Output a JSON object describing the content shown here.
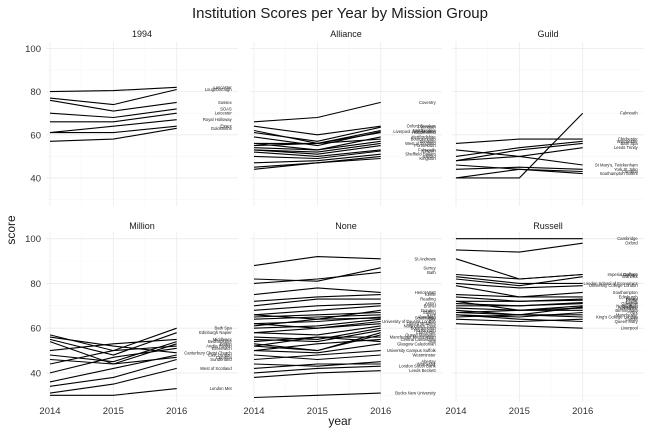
{
  "chart_data": {
    "type": "line",
    "title": "Institution Scores per Year by Mission Group",
    "xlabel": "year",
    "ylabel": "score",
    "x": [
      2014,
      2015,
      2016
    ],
    "x_tick_labels": [
      "2014",
      "2015",
      "2016"
    ],
    "ylim": [
      27,
      103
    ],
    "y_ticks": [
      40,
      60,
      80,
      100
    ],
    "y_tick_labels": [
      "40",
      "60",
      "80",
      "100"
    ],
    "grid": true,
    "facets": [
      {
        "name": "1994",
        "series": [
          {
            "name": "Lancaster",
            "values": [
              80,
              80.5,
              82
            ]
          },
          {
            "name": "Loughborough",
            "values": [
              77,
              74,
              81
            ]
          },
          {
            "name": "Sussex",
            "values": [
              76,
              71,
              75
            ]
          },
          {
            "name": "SOAS",
            "values": [
              70,
              68,
              72
            ]
          },
          {
            "name": "Leicester",
            "values": [
              66,
              66,
              70
            ]
          },
          {
            "name": "Royal Holloway",
            "values": [
              61,
              64,
              67
            ]
          },
          {
            "name": "Essex",
            "values": [
              61,
              61,
              64
            ]
          },
          {
            "name": "Goldsmiths",
            "values": [
              57,
              58,
              63
            ]
          }
        ]
      },
      {
        "name": "Alliance",
        "series": [
          {
            "name": "Coventry",
            "values": [
              66,
              68,
              75
            ]
          },
          {
            "name": "Oxford Brookes",
            "values": [
              64,
              60,
              64
            ]
          },
          {
            "name": "Plymouth",
            "values": [
              61,
              57,
              63.5
            ]
          },
          {
            "name": "Northumbria",
            "values": [
              62,
              56,
              62
            ]
          },
          {
            "name": "Liverpool John Moores",
            "values": [
              59,
              55,
              61.5
            ]
          },
          {
            "name": "Huddersfield",
            "values": [
              56,
              56,
              61
            ]
          },
          {
            "name": "Hertfordshire",
            "values": [
              56,
              53,
              59
            ]
          },
          {
            "name": "Bournemouth",
            "values": [
              55,
              56,
              58
            ]
          },
          {
            "name": "Teesside",
            "values": [
              54,
              53,
              57
            ]
          },
          {
            "name": "West of England",
            "values": [
              53,
              52,
              56
            ]
          },
          {
            "name": "Portsmouth",
            "values": [
              53,
              51,
              55
            ]
          },
          {
            "name": "Falmouth",
            "values": [
              52,
              50,
              53
            ]
          },
          {
            "name": "Lincoln",
            "values": [
              50,
              49,
              52.5
            ]
          },
          {
            "name": "Sheffield Hallam",
            "values": [
              47,
              48,
              51
            ]
          },
          {
            "name": "Salford",
            "values": [
              45,
              47,
              50
            ]
          },
          {
            "name": "Kingston",
            "values": [
              44,
              47,
              49
            ]
          }
        ]
      },
      {
        "name": "Guild",
        "series": [
          {
            "name": "Falmouth",
            "values": [
              40,
              40,
              70
            ]
          },
          {
            "name": "Chichester",
            "values": [
              56,
              58,
              58
            ]
          },
          {
            "name": "Winchester",
            "values": [
              50,
              54,
              57
            ]
          },
          {
            "name": "Bath Spa",
            "values": [
              48,
              53,
              56
            ]
          },
          {
            "name": "Leeds Trinity",
            "values": [
              53,
              50,
              54
            ]
          },
          {
            "name": "St Mary's, Twickenham",
            "values": [
              48,
              50,
              46
            ]
          },
          {
            "name": "York St John",
            "values": [
              44,
              45,
              44
            ]
          },
          {
            "name": "Cumbria",
            "values": [
              46,
              44,
              43
            ]
          },
          {
            "name": "Southampton Solent",
            "values": [
              40,
              44,
              42
            ]
          }
        ]
      },
      {
        "name": "Million",
        "series": [
          {
            "name": "Bath Spa",
            "values": [
              57,
              50,
              60
            ]
          },
          {
            "name": "Edinburgh Napier",
            "values": [
              55,
              48,
              58
            ]
          },
          {
            "name": "Middlesex",
            "values": [
              50,
              53,
              55
            ]
          },
          {
            "name": "Bedfordshire",
            "values": [
              48,
              45,
              54
            ]
          },
          {
            "name": "Bolton",
            "values": [
              46,
              44,
              53
            ]
          },
          {
            "name": "Anglia Ruskin",
            "values": [
              44,
              50,
              52
            ]
          },
          {
            "name": "Greenwich",
            "values": [
              40,
              47,
              51
            ]
          },
          {
            "name": "Canterbury Christ Church",
            "values": [
              56,
              52,
              49
            ]
          },
          {
            "name": "East London",
            "values": [
              36,
              42,
              48
            ]
          },
          {
            "name": "Cumbria",
            "values": [
              54,
              44,
              47
            ]
          },
          {
            "name": "Sunderland",
            "values": [
              34,
              38,
              46
            ]
          },
          {
            "name": "West of Scotland",
            "values": [
              31,
              35,
              42
            ]
          },
          {
            "name": "London Met",
            "values": [
              30,
              30,
              33
            ]
          }
        ]
      },
      {
        "name": "None",
        "series": [
          {
            "name": "St Andrews",
            "values": [
              88,
              92,
              91
            ]
          },
          {
            "name": "Surrey",
            "values": [
              82,
              81,
              87
            ]
          },
          {
            "name": "Bath",
            "values": [
              80,
              82,
              85
            ]
          },
          {
            "name": "Heriot-Watt",
            "values": [
              75,
              78,
              76
            ]
          },
          {
            "name": "Keele",
            "values": [
              72,
              74,
              75
            ]
          },
          {
            "name": "Reading",
            "values": [
              70,
              73,
              73
            ]
          },
          {
            "name": "Aston",
            "values": [
              68,
              70,
              71
            ]
          },
          {
            "name": "Brunel",
            "values": [
              66,
              68,
              70
            ]
          },
          {
            "name": "Dundee",
            "values": [
              66,
              64,
              68
            ]
          },
          {
            "name": "Stirling",
            "values": [
              65,
              66,
              67
            ]
          },
          {
            "name": "Kent",
            "values": [
              64,
              65,
              66
            ]
          },
          {
            "name": "Aberdeen",
            "values": [
              62,
              63,
              65
            ]
          },
          {
            "name": "Strathclyde",
            "values": [
              61,
              64,
              64.5
            ]
          },
          {
            "name": "City",
            "values": [
              60,
              61,
              64
            ]
          },
          {
            "name": "University of the Arts London",
            "values": [
              58,
              60,
              63
            ]
          },
          {
            "name": "Oxford Brookes",
            "values": [
              62,
              60,
              62
            ]
          },
          {
            "name": "Nottingham Trent",
            "values": [
              58,
              57,
              61
            ]
          },
          {
            "name": "Bournemouth",
            "values": [
              56,
              55,
              60
            ]
          },
          {
            "name": "Portsmouth",
            "values": [
              55,
              54,
              59
            ]
          },
          {
            "name": "Chichester",
            "values": [
              52,
              50,
              58
            ]
          },
          {
            "name": "Queen Margaret",
            "values": [
              53,
              50,
              57
            ]
          },
          {
            "name": "Manchester Metropolitan",
            "values": [
              54,
              56,
              56
            ]
          },
          {
            "name": "Central Lancashire",
            "values": [
              50,
              53,
              55
            ]
          },
          {
            "name": "Hull",
            "values": [
              52,
              56,
              54
            ]
          },
          {
            "name": "Glasgow Caledonian",
            "values": [
              50,
              49,
              53
            ]
          },
          {
            "name": "University Campus Suffolk",
            "values": [
              46,
              48,
              50
            ]
          },
          {
            "name": "Westminster",
            "values": [
              48,
              46,
              48
            ]
          },
          {
            "name": "Abertay",
            "values": [
              44,
              43,
              45
            ]
          },
          {
            "name": "Worcester",
            "values": [
              42,
              44,
              44
            ]
          },
          {
            "name": "London South Bank",
            "values": [
              40,
              42,
              43
            ]
          },
          {
            "name": "Leeds Beckett",
            "values": [
              38,
              40,
              41
            ]
          },
          {
            "name": "Bucks New University",
            "values": [
              29,
              30,
              31
            ]
          }
        ]
      },
      {
        "name": "Russell",
        "series": [
          {
            "name": "Cambridge",
            "values": [
              100,
              100,
              100
            ]
          },
          {
            "name": "Oxford",
            "values": [
              95,
              94,
              98
            ]
          },
          {
            "name": "Imperial College",
            "values": [
              91,
              82,
              84
            ]
          },
          {
            "name": "Durham",
            "values": [
              84,
              82,
              84
            ]
          },
          {
            "name": "Warwick",
            "values": [
              82,
              79,
              83
            ]
          },
          {
            "name": "London School of Economics",
            "values": [
              83,
              80,
              80
            ]
          },
          {
            "name": "University College London",
            "values": [
              80,
              78,
              79
            ]
          },
          {
            "name": "Southampton",
            "values": [
              79,
              74,
              76
            ]
          },
          {
            "name": "Edinburgh",
            "values": [
              75,
              74,
              74
            ]
          },
          {
            "name": "Bristol",
            "values": [
              74,
              72,
              73
            ]
          },
          {
            "name": "Exeter",
            "values": [
              72,
              72,
              72.5
            ]
          },
          {
            "name": "Leeds",
            "values": [
              71,
              70,
              71.5
            ]
          },
          {
            "name": "Glasgow",
            "values": [
              70,
              70,
              71
            ]
          },
          {
            "name": "Nottingham",
            "values": [
              69,
              68,
              70
            ]
          },
          {
            "name": "Sheffield",
            "values": [
              68,
              66,
              69.5
            ]
          },
          {
            "name": "Newcastle",
            "values": [
              67,
              68,
              69
            ]
          },
          {
            "name": "Birmingham",
            "values": [
              72,
              68,
              68
            ]
          },
          {
            "name": "York",
            "values": [
              66,
              65,
              67
            ]
          },
          {
            "name": "King's College London",
            "values": [
              65,
              66,
              65
            ]
          },
          {
            "name": "Cardiff",
            "values": [
              64,
              63,
              64
            ]
          },
          {
            "name": "Queen Mary",
            "values": [
              66,
              64,
              63
            ]
          },
          {
            "name": "Manchester",
            "values": [
              67,
              66,
              66
            ]
          },
          {
            "name": "Liverpool",
            "values": [
              62,
              61,
              60
            ]
          }
        ]
      }
    ]
  }
}
